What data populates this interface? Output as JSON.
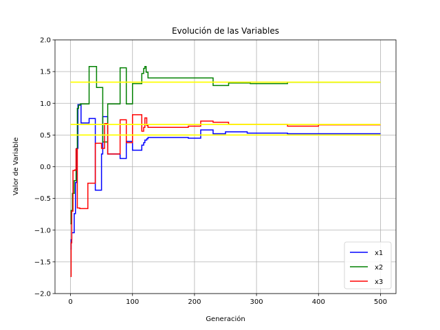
{
  "chart_data": {
    "type": "line",
    "title": "Evolución de las Variables",
    "xlabel": "Generación",
    "ylabel": "Valor de Variable",
    "xlim": [
      -25,
      525
    ],
    "ylim": [
      -2.0,
      2.0
    ],
    "xticks": [
      0,
      100,
      200,
      300,
      400,
      500
    ],
    "yticks": [
      -2.0,
      -1.5,
      -1.0,
      -0.5,
      0.0,
      0.5,
      1.0,
      1.5,
      2.0
    ],
    "xtick_labels": [
      "0",
      "100",
      "200",
      "300",
      "400",
      "500"
    ],
    "ytick_labels": [
      "−2.0",
      "−1.5",
      "−1.0",
      "−0.5",
      "0.0",
      "0.5",
      "1.0",
      "1.5",
      "2.0"
    ],
    "grid": true,
    "legend_position": "lower-right",
    "series": [
      {
        "name": "x1",
        "color": "#0000ff",
        "step": true,
        "x": [
          0,
          1,
          2,
          6,
          8,
          10,
          12,
          15,
          17,
          30,
          40,
          50,
          52,
          60,
          70,
          80,
          90,
          100,
          102,
          115,
          118,
          120,
          123,
          125,
          190,
          210,
          230,
          250,
          285,
          350,
          400,
          500
        ],
        "y": [
          -1.3,
          -1.15,
          -1.04,
          -0.74,
          -0.25,
          0.29,
          0.98,
          0.98,
          0.69,
          0.76,
          -0.37,
          0.2,
          0.79,
          0.2,
          0.2,
          0.13,
          0.4,
          0.26,
          0.26,
          0.34,
          0.38,
          0.42,
          0.44,
          0.46,
          0.45,
          0.58,
          0.52,
          0.55,
          0.53,
          0.52,
          0.52,
          0.52
        ]
      },
      {
        "name": "x2",
        "color": "#008000",
        "step": true,
        "x": [
          0,
          1,
          3,
          6,
          9,
          11,
          13,
          16,
          20,
          30,
          42,
          52,
          60,
          80,
          90,
          100,
          115,
          118,
          120,
          122,
          125,
          230,
          255,
          290,
          350,
          400,
          500
        ],
        "y": [
          -0.9,
          -0.69,
          -0.42,
          -0.22,
          0.28,
          0.92,
          0.97,
          0.99,
          0.99,
          1.58,
          1.25,
          0.39,
          0.99,
          1.56,
          0.99,
          1.31,
          1.47,
          1.55,
          1.58,
          1.49,
          1.4,
          1.28,
          1.32,
          1.31,
          1.33,
          1.33,
          1.33
        ]
      },
      {
        "name": "x3",
        "color": "#ff0000",
        "step": true,
        "x": [
          0,
          1,
          2,
          4,
          7,
          9,
          11,
          15,
          20,
          28,
          40,
          50,
          55,
          60,
          80,
          90,
          100,
          115,
          118,
          120,
          123,
          125,
          190,
          210,
          230,
          255,
          280,
          350,
          400,
          500
        ],
        "y": [
          -1.73,
          -1.2,
          -0.7,
          -0.06,
          -0.05,
          0.28,
          -0.65,
          -0.66,
          -0.66,
          -0.26,
          0.37,
          0.29,
          0.68,
          0.2,
          0.74,
          0.38,
          0.82,
          0.56,
          0.62,
          0.77,
          0.65,
          0.62,
          0.64,
          0.72,
          0.7,
          0.67,
          0.67,
          0.64,
          0.66,
          0.66
        ]
      }
    ],
    "reference_lines": {
      "color": "#ffff00",
      "x_range": [
        0,
        500
      ],
      "y": [
        1.333,
        0.667,
        0.5
      ]
    }
  }
}
